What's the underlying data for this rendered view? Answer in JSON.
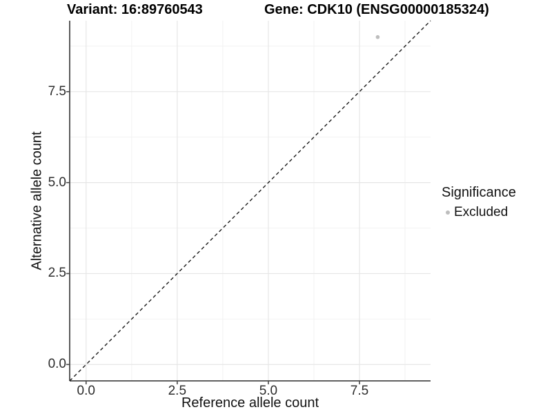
{
  "chart_data": {
    "type": "scatter",
    "titles": {
      "left": "Variant: 16:89760543",
      "right": "Gene: CDK10 (ENSG00000185324)"
    },
    "xlabel": "Reference allele count",
    "ylabel": "Alternative allele count",
    "xlim": [
      -0.45,
      9.45
    ],
    "ylim": [
      -0.45,
      9.45
    ],
    "x_ticks": {
      "values": [
        0,
        2.5,
        5,
        7.5
      ],
      "labels": [
        "0.0",
        "2.5",
        "5.0",
        "7.5"
      ]
    },
    "y_ticks": {
      "values": [
        0,
        2.5,
        5,
        7.5
      ],
      "labels": [
        "0.0",
        "2.5",
        "5.0",
        "7.5"
      ]
    },
    "minor_ticks": [
      1.25,
      3.75,
      6.25,
      8.75
    ],
    "grid": {
      "show": true,
      "major_color": "#e6e6e6",
      "minor_color": "#f2f2f2"
    },
    "axis_color": "#484848",
    "background": "#ffffff",
    "reference_line": {
      "type": "abline",
      "slope": 1,
      "intercept": 0,
      "style": "dashed",
      "color": "#1a1a1a"
    },
    "series": [
      {
        "name": "Excluded",
        "color": "#bdbdbd",
        "points": [
          {
            "x": 8,
            "y": 9
          }
        ]
      }
    ],
    "legend": {
      "title": "Significance",
      "position": "right",
      "entries": [
        {
          "label": "Excluded",
          "color": "#bdbdbd",
          "marker": "circle"
        }
      ]
    }
  }
}
